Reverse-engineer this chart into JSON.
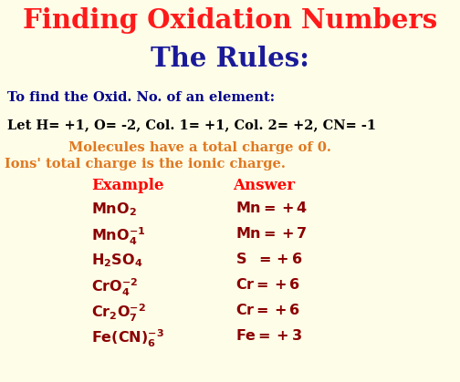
{
  "bg_color": "#fefde8",
  "title1": "Finding Oxidation Numbers",
  "title2": "The Rules:",
  "title1_color": "#ff1a1a",
  "title2_color": "#1a1a99",
  "subtitle_color": "#00008b",
  "subtitle": "To find the Oxid. No. of an element:",
  "rule_line": "Let H= +1, O= -2, Col. 1= +1, Col. 2= +2, CN= -1",
  "rule_color": "#000000",
  "orange_color": "#e07820",
  "mol_line": "Molecules have a total charge of 0.",
  "ion_line": "Ions' total charge is the ionic charge.",
  "ex_header": "Example",
  "ans_header": "Answer",
  "header_color": "#ff0000",
  "dark_red": "#8b0000",
  "figsize": [
    5.04,
    4.19
  ],
  "dpi": 100
}
